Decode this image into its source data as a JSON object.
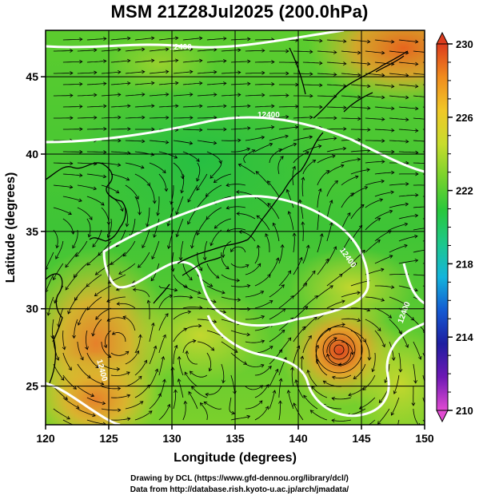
{
  "title": "MSM 21Z28Jul2025 (200.0hPa)",
  "map": {
    "lon_range": [
      120,
      150
    ],
    "lat_range": [
      22.5,
      48
    ],
    "lon_ticks": [
      "120",
      "125",
      "130",
      "135",
      "140",
      "145",
      "150"
    ],
    "lat_ticks": [
      "25",
      "30",
      "35",
      "40",
      "45"
    ],
    "xlabel": "Longitude (degrees)",
    "ylabel": "Latitude  (degrees)",
    "contour_labels": [
      "12400",
      "12400",
      "12400",
      "12400",
      "12400"
    ],
    "colors": {
      "field_low": "#37c832",
      "field_mid": "#7dd22d",
      "field_high": "#e6a02d",
      "field_peak": "#e65a1e",
      "contour": "#ffffff",
      "grid": "#000000"
    }
  },
  "colorbar": {
    "tick_labels": [
      "230",
      "226",
      "222",
      "218",
      "214",
      "210"
    ],
    "min": 210,
    "max": 230,
    "stops": [
      "#e14bd2",
      "#6e19b4",
      "#1e1ea0",
      "#145ad2",
      "#14b4dc",
      "#1ec88c",
      "#28c83c",
      "#78d22d",
      "#c8dc2d",
      "#f0c828",
      "#f08c1e",
      "#dc3c1e"
    ]
  },
  "credits": {
    "line1": "Drawing by DCL (https://www.gfd-dennou.org/library/dcl/)",
    "line2": "Data from http://database.rish.kyoto-u.ac.jp/arch/jmadata/"
  }
}
